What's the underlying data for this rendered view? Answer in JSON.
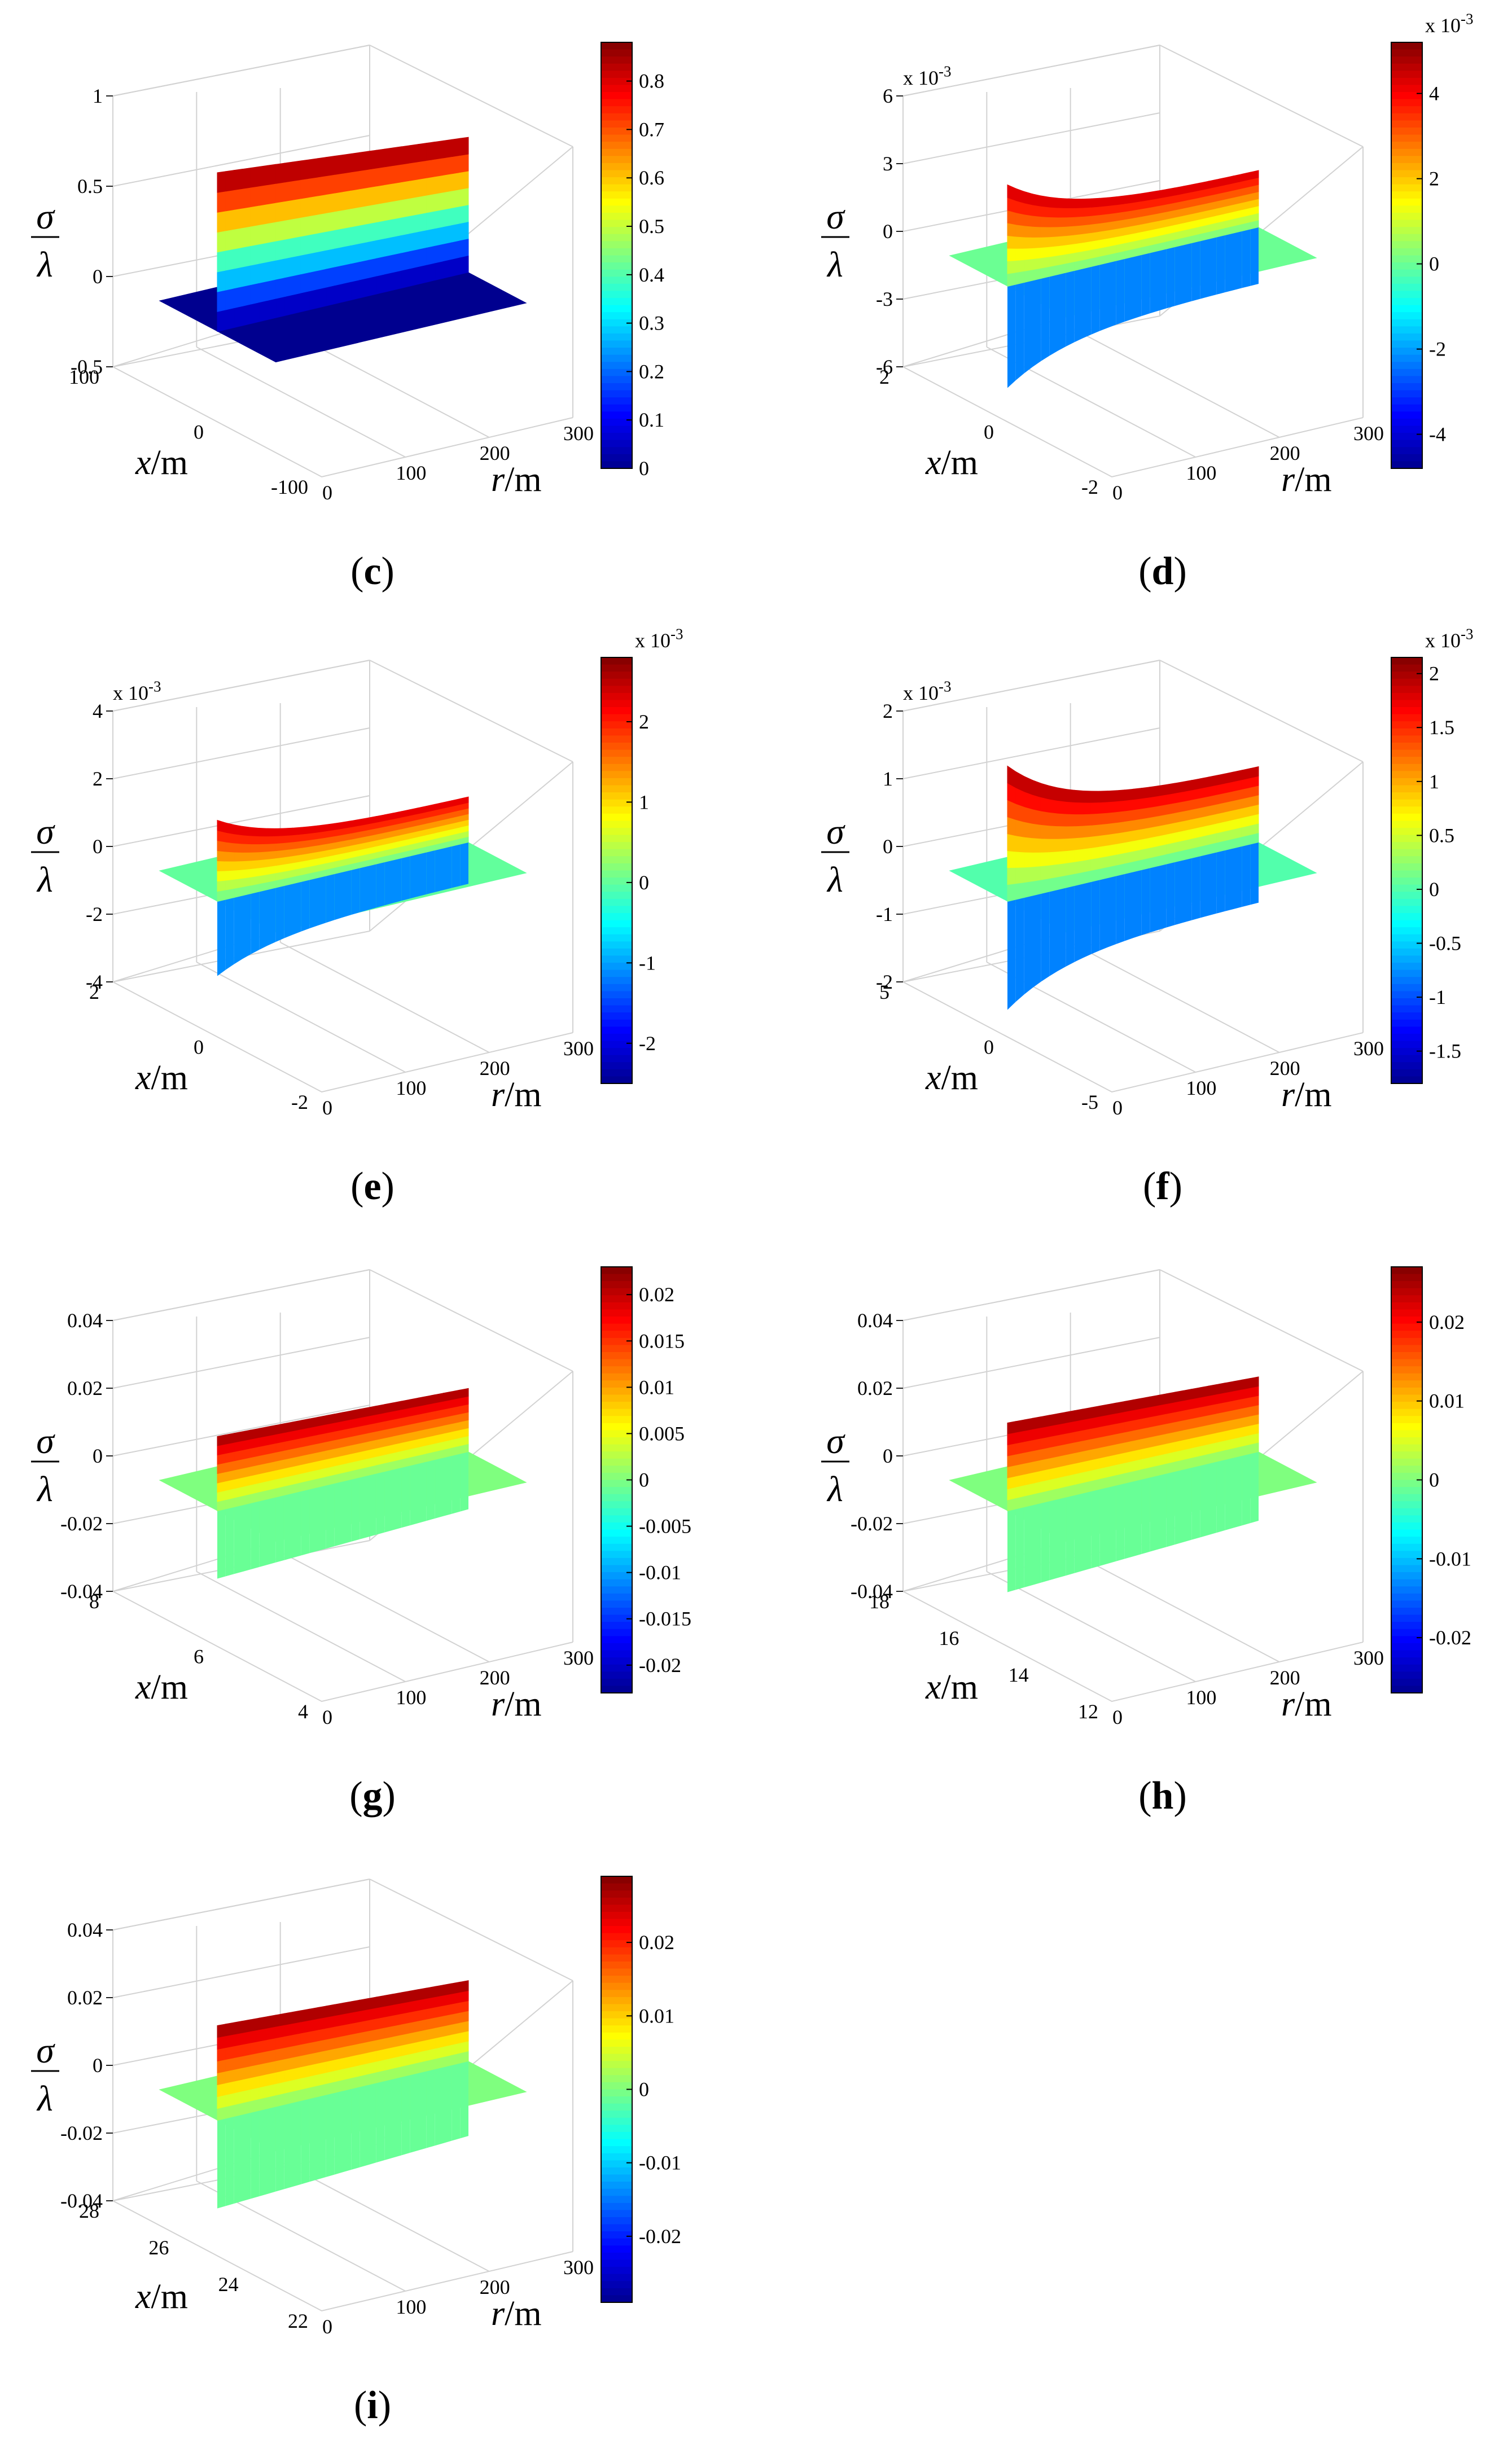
{
  "figure": {
    "axis_labels": {
      "sigma": "σ",
      "lambda": "λ",
      "x": "x",
      "r": "r",
      "unit": "/m"
    },
    "colormap": [
      "#00008f",
      "#0000ff",
      "#007fff",
      "#00ffff",
      "#7fff7f",
      "#ffff00",
      "#ff7f00",
      "#ff0000",
      "#7f0000"
    ],
    "surface_side_color": "#00e699"
  },
  "chart_data": [
    {
      "type": "surface3d",
      "panel_label": "(c)",
      "title": "",
      "xlabel": "x/m",
      "rlabel": "r/m",
      "zlabel": "σ/λ",
      "exponent_label": "",
      "z_ticks": [
        "1",
        "0.5",
        "0",
        "-0.5"
      ],
      "z_range": [
        -0.5,
        1
      ],
      "x_ticks": [
        "100",
        "0",
        "-100"
      ],
      "x_range": [
        -100,
        100
      ],
      "r_ticks": [
        "0",
        "100",
        "200",
        "300"
      ],
      "r_range": [
        0,
        300
      ],
      "colorbar": {
        "ticks": [
          "0.8",
          "0.7",
          "0.6",
          "0.5",
          "0.4",
          "0.3",
          "0.2",
          "0.1",
          "0"
        ],
        "exponent": "",
        "range": [
          0,
          0.88
        ]
      },
      "surface": {
        "crest_max": 0.88,
        "trough_min": 0.0,
        "profile": "step",
        "base_value": 0.0
      }
    },
    {
      "type": "surface3d",
      "panel_label": "(d)",
      "title": "",
      "xlabel": "x/m",
      "rlabel": "r/m",
      "zlabel": "σ/λ",
      "exponent_label": "x 10-3",
      "z_ticks": [
        "6",
        "3",
        "0",
        "-3",
        "-6"
      ],
      "z_range": [
        -6,
        6
      ],
      "x_ticks": [
        "2",
        "0",
        "-2"
      ],
      "x_range": [
        -2,
        2
      ],
      "r_ticks": [
        "0",
        "100",
        "200",
        "300"
      ],
      "r_range": [
        0,
        300
      ],
      "colorbar": {
        "ticks": [
          "4",
          "2",
          "0",
          "-2",
          "-4"
        ],
        "exponent": "x 10-3",
        "range": [
          -4.8,
          5.2
        ]
      },
      "surface": {
        "crest_max": 4.5,
        "trough_min": -4.5,
        "profile": "antisym",
        "base_value": 0
      }
    },
    {
      "type": "surface3d",
      "panel_label": "(e)",
      "title": "",
      "xlabel": "x/m",
      "rlabel": "r/m",
      "zlabel": "σ/λ",
      "exponent_label": "x 10-3",
      "z_ticks": [
        "4",
        "2",
        "0",
        "-2",
        "-4"
      ],
      "z_range": [
        -4,
        4
      ],
      "x_ticks": [
        "2",
        "0",
        "-2"
      ],
      "x_range": [
        -2,
        2
      ],
      "r_ticks": [
        "0",
        "100",
        "200",
        "300"
      ],
      "r_range": [
        0,
        300
      ],
      "colorbar": {
        "ticks": [
          "2",
          "1",
          "0",
          "-1",
          "-2"
        ],
        "exponent": "x 10-3",
        "range": [
          -2.5,
          2.8
        ]
      },
      "surface": {
        "crest_max": 2.4,
        "trough_min": -2.2,
        "profile": "antisym",
        "base_value": 0
      }
    },
    {
      "type": "surface3d",
      "panel_label": "(f)",
      "title": "",
      "xlabel": "x/m",
      "rlabel": "r/m",
      "zlabel": "σ/λ",
      "exponent_label": "x 10-3",
      "z_ticks": [
        "2",
        "1",
        "0",
        "-1",
        "-2"
      ],
      "z_range": [
        -2,
        2
      ],
      "x_ticks": [
        "5",
        "0",
        "-5"
      ],
      "x_range": [
        -5,
        5
      ],
      "r_ticks": [
        "0",
        "100",
        "200",
        "300"
      ],
      "r_range": [
        0,
        300
      ],
      "colorbar": {
        "ticks": [
          "2",
          "1.5",
          "1",
          "0.5",
          "0",
          "-0.5",
          "-1",
          "-1.5"
        ],
        "exponent": "x 10-3",
        "range": [
          -1.8,
          2.15
        ]
      },
      "surface": {
        "crest_max": 2.0,
        "trough_min": -1.6,
        "profile": "antisym",
        "base_value": 0
      }
    },
    {
      "type": "surface3d",
      "panel_label": "(g)",
      "title": "",
      "xlabel": "x/m",
      "rlabel": "r/m",
      "zlabel": "σ/λ",
      "exponent_label": "",
      "z_ticks": [
        "0.04",
        "0.02",
        "0",
        "-0.02",
        "-0.04"
      ],
      "z_range": [
        -0.04,
        0.04
      ],
      "x_ticks": [
        "8",
        "6",
        "4"
      ],
      "x_range": [
        4,
        8
      ],
      "r_ticks": [
        "0",
        "100",
        "200",
        "300"
      ],
      "r_range": [
        0,
        300
      ],
      "colorbar": {
        "ticks": [
          "0.02",
          "0.015",
          "0.01",
          "0.005",
          "0",
          "-0.005",
          "-0.01",
          "-0.015",
          "-0.02"
        ],
        "exponent": "",
        "range": [
          -0.023,
          0.023
        ]
      },
      "surface": {
        "crest_max": 0.022,
        "trough_min": -0.02,
        "profile": "step",
        "base_value": 0
      }
    },
    {
      "type": "surface3d",
      "panel_label": "(h)",
      "title": "",
      "xlabel": "x/m",
      "rlabel": "r/m",
      "zlabel": "σ/λ",
      "exponent_label": "",
      "z_ticks": [
        "0.04",
        "0.02",
        "0",
        "-0.02",
        "-0.04"
      ],
      "z_range": [
        -0.04,
        0.04
      ],
      "x_ticks": [
        "18",
        "16",
        "14",
        "12"
      ],
      "x_range": [
        12,
        18
      ],
      "r_ticks": [
        "0",
        "100",
        "200",
        "300"
      ],
      "r_range": [
        0,
        300
      ],
      "colorbar": {
        "ticks": [
          "0.02",
          "0.01",
          "0",
          "-0.01",
          "-0.02"
        ],
        "exponent": "",
        "range": [
          -0.027,
          0.027
        ]
      },
      "surface": {
        "crest_max": 0.026,
        "trough_min": -0.024,
        "profile": "step",
        "base_value": 0
      }
    },
    {
      "type": "surface3d",
      "panel_label": "(i)",
      "title": "",
      "xlabel": "x/m",
      "rlabel": "r/m",
      "zlabel": "σ/λ",
      "exponent_label": "",
      "z_ticks": [
        "0.04",
        "0.02",
        "0",
        "-0.02",
        "-0.04"
      ],
      "z_range": [
        -0.04,
        0.04
      ],
      "x_ticks": [
        "28",
        "26",
        "24",
        "22"
      ],
      "x_range": [
        22,
        28
      ],
      "r_ticks": [
        "0",
        "100",
        "200",
        "300"
      ],
      "r_range": [
        0,
        300
      ],
      "colorbar": {
        "ticks": [
          "0.02",
          "0.01",
          "0",
          "-0.01",
          "-0.02"
        ],
        "exponent": "",
        "range": [
          -0.029,
          0.029
        ]
      },
      "surface": {
        "crest_max": 0.028,
        "trough_min": -0.026,
        "profile": "step",
        "base_value": 0
      }
    }
  ]
}
